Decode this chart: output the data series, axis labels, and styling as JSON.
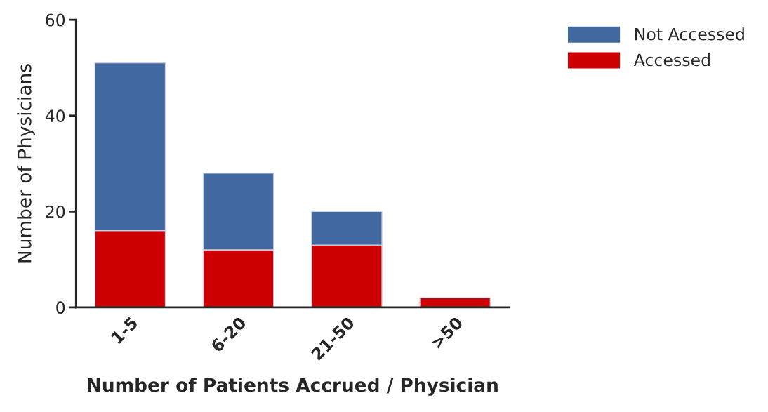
{
  "chart_data": {
    "type": "bar",
    "stacked": true,
    "xlabel": "Number of Patients Accrued / Physician",
    "ylabel": "Number of Physicians",
    "categories": [
      "1-5",
      "6-20",
      "21-50",
      ">50"
    ],
    "series": [
      {
        "name": "Accessed",
        "color": "#cc0000",
        "values": [
          16,
          12,
          13,
          2
        ]
      },
      {
        "name": "Not Accessed",
        "color": "#41689f",
        "values": [
          35,
          16,
          7,
          null
        ]
      }
    ],
    "ylim": [
      0,
      60
    ],
    "yticks": [
      0,
      20,
      40,
      60
    ],
    "grid": false,
    "legend": "top right"
  }
}
